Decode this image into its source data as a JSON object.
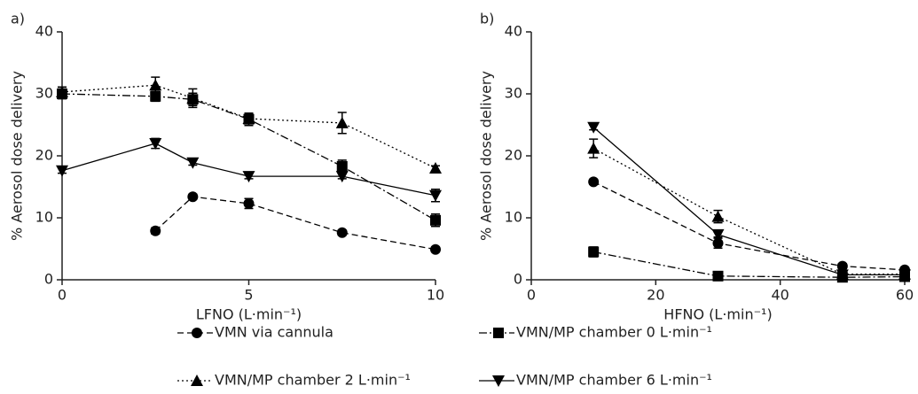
{
  "chart_data": [
    {
      "type": "line",
      "panel_label": "a)",
      "x_label": "LFNO (L·min⁻¹)",
      "y_label": "% Aerosol dose delivery",
      "xlim": [
        0,
        10
      ],
      "ylim": [
        0,
        40
      ],
      "xticks": [
        0,
        5,
        10
      ],
      "yticks": [
        0,
        10,
        20,
        30,
        40
      ],
      "legend": "bottom",
      "series": [
        {
          "name": "VMN via cannula",
          "color": "#000000",
          "marker": "circle",
          "dash": "dashed",
          "x": [
            2.5,
            3.5,
            5,
            7.5,
            10
          ],
          "values": [
            7.9,
            13.4,
            12.3,
            7.6,
            4.9
          ],
          "errors": [
            0.5,
            0.4,
            0.8,
            0.4,
            0.4
          ]
        },
        {
          "name": "VMN/MP chamber 0 L·min⁻¹",
          "color": "#000000",
          "marker": "square",
          "dash": "dashdot",
          "x": [
            0,
            2.5,
            3.5,
            5,
            7.5,
            10
          ],
          "values": [
            30.0,
            29.6,
            29.1,
            25.9,
            18.3,
            9.6
          ],
          "errors": [
            0.8,
            0.8,
            1.0,
            1.0,
            1.0,
            1.0
          ]
        },
        {
          "name": "VMN/MP chamber 2 L·min⁻¹",
          "color": "#000000",
          "marker": "triangle-up",
          "dash": "dotted",
          "x": [
            0,
            2.5,
            3.5,
            5,
            7.5,
            10
          ],
          "values": [
            30.3,
            31.4,
            29.3,
            26.0,
            25.3,
            18.0
          ],
          "errors": [
            0.8,
            1.3,
            1.5,
            0.8,
            1.7,
            0.4
          ]
        },
        {
          "name": "VMN/MP chamber 6 L·min⁻¹",
          "color": "#000000",
          "marker": "triangle-down",
          "dash": "solid",
          "x": [
            0,
            2.5,
            3.5,
            5,
            7.5,
            10
          ],
          "values": [
            17.6,
            22.0,
            18.9,
            16.7,
            16.7,
            13.6
          ],
          "errors": [
            0.4,
            0.8,
            0.4,
            0.4,
            0.4,
            1.0
          ]
        }
      ]
    },
    {
      "type": "line",
      "panel_label": "b)",
      "x_label": "HFNO (L·min⁻¹)",
      "y_label": "% Aerosol dose delivery",
      "xlim": [
        0,
        60
      ],
      "ylim": [
        0,
        40
      ],
      "xticks": [
        0,
        20,
        40,
        60
      ],
      "yticks": [
        0,
        10,
        20,
        30,
        40
      ],
      "series": [
        {
          "color": "#000000",
          "marker": "circle",
          "dash": "dashed",
          "x": [
            10,
            30,
            50,
            60
          ],
          "values": [
            15.8,
            5.9,
            2.2,
            1.6
          ],
          "errors": [
            0.4,
            0.8,
            0.4,
            0.4
          ]
        },
        {
          "color": "#000000",
          "marker": "square",
          "dash": "dashdot",
          "x": [
            10,
            30,
            50,
            60
          ],
          "values": [
            4.5,
            0.6,
            0.4,
            0.5
          ],
          "errors": [
            0.8,
            0.3,
            0.2,
            0.2
          ]
        },
        {
          "color": "#000000",
          "marker": "triangle-up",
          "dash": "dotted",
          "x": [
            10,
            30,
            50,
            60
          ],
          "values": [
            21.2,
            10.2,
            0.9,
            0.9
          ],
          "errors": [
            1.5,
            1.0,
            0.2,
            0.2
          ]
        },
        {
          "color": "#000000",
          "marker": "triangle-down",
          "dash": "solid",
          "x": [
            10,
            30,
            50,
            60
          ],
          "values": [
            24.6,
            7.3,
            0.8,
            0.8
          ],
          "errors": [
            0.4,
            0.4,
            0.2,
            0.2
          ]
        }
      ]
    }
  ]
}
